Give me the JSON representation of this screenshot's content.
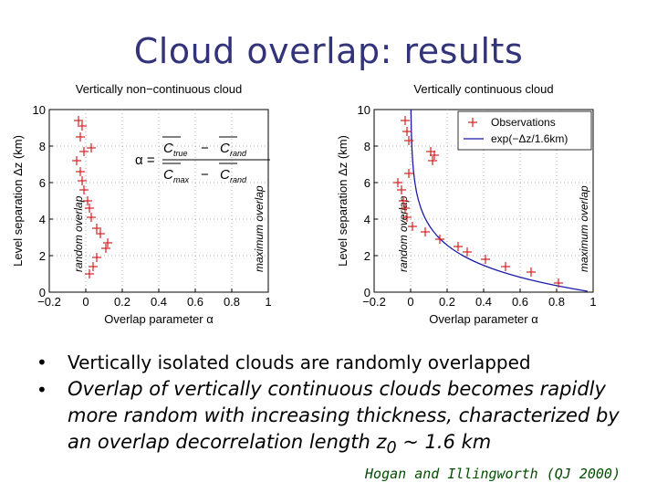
{
  "page": {
    "title": "Cloud overlap: results"
  },
  "bullets": {
    "b1": "Vertically isolated clouds are randomly overlapped",
    "b2_before": "Overlap of vertically continuous clouds becomes rapidly more random with increasing thickness, characterized by an overlap decorrelation length z",
    "b2_sub": "0",
    "b2_after": " ~ 1.6 km"
  },
  "citation": "Hogan and Illingworth (QJ 2000)",
  "colors": {
    "title": "#33337a",
    "observations": "#d42020",
    "fit": "#1a1aa8",
    "citation": "#004d00"
  },
  "chart_data": [
    {
      "type": "scatter",
      "title": "Vertically non−continuous cloud",
      "xlabel": "Overlap parameter α",
      "ylabel": "Level separation Δz (km)",
      "xlim": [
        -0.2,
        1
      ],
      "ylim": [
        0,
        10
      ],
      "xticks": [
        "−0.2",
        "0",
        "0.2",
        "0.4",
        "0.6",
        "0.8",
        "1"
      ],
      "yticks": [
        "0",
        "2",
        "4",
        "6",
        "8",
        "10"
      ],
      "grid": true,
      "annotations": {
        "left": "random overlap",
        "right": "maximum overlap"
      },
      "formula": {
        "lhs": "α =",
        "num_a": "C",
        "num_a_sub": "true",
        "num_b": "C",
        "num_b_sub": "rand",
        "den_a": "C",
        "den_a_sub": "max",
        "den_b": "C",
        "den_b_sub": "rand"
      },
      "series": [
        {
          "x": [
            -0.04,
            -0.02,
            -0.03,
            0.03,
            -0.01,
            -0.05,
            -0.03,
            -0.02,
            -0.01,
            0.01,
            0.02,
            0.03,
            0.06,
            0.08,
            0.12,
            0.11,
            0.06,
            0.04,
            0.02
          ],
          "y": [
            9.4,
            9.1,
            8.5,
            7.9,
            7.7,
            7.2,
            6.6,
            6.1,
            5.6,
            5.0,
            4.6,
            4.1,
            3.5,
            3.2,
            2.7,
            2.4,
            1.9,
            1.4,
            1.0
          ]
        }
      ]
    },
    {
      "type": "scatter",
      "title": "Vertically continuous cloud",
      "xlabel": "Overlap parameter α",
      "ylabel": "Level separation Δz (km)",
      "xlim": [
        -0.2,
        1
      ],
      "ylim": [
        0,
        10
      ],
      "xticks": [
        "−0.2",
        "0",
        "0.2",
        "0.4",
        "0.6",
        "0.8",
        "1"
      ],
      "yticks": [
        "0",
        "2",
        "4",
        "6",
        "8",
        "10"
      ],
      "grid": true,
      "annotations": {
        "left": "random overlap",
        "right": "maximum overlap"
      },
      "legend": {
        "position": "top-right",
        "observations": "Observations",
        "fit": "exp(−Δz/1.6km)"
      },
      "series": [
        {
          "name": "Observations",
          "x": [
            -0.03,
            -0.02,
            -0.01,
            0.11,
            0.13,
            0.12,
            -0.01,
            -0.07,
            -0.05,
            -0.04,
            -0.03,
            -0.02,
            0.01,
            0.08,
            0.16,
            0.26,
            0.31,
            0.41,
            0.52,
            0.66,
            0.81
          ],
          "y": [
            9.4,
            8.8,
            8.3,
            7.7,
            7.5,
            7.2,
            6.5,
            6.0,
            5.6,
            5.0,
            4.6,
            4.1,
            3.6,
            3.3,
            2.9,
            2.5,
            2.2,
            1.8,
            1.4,
            1.1,
            0.5
          ]
        },
        {
          "name": "exp(−Δz/1.6km)",
          "function": "exp(-dz/1.6)"
        }
      ]
    }
  ]
}
